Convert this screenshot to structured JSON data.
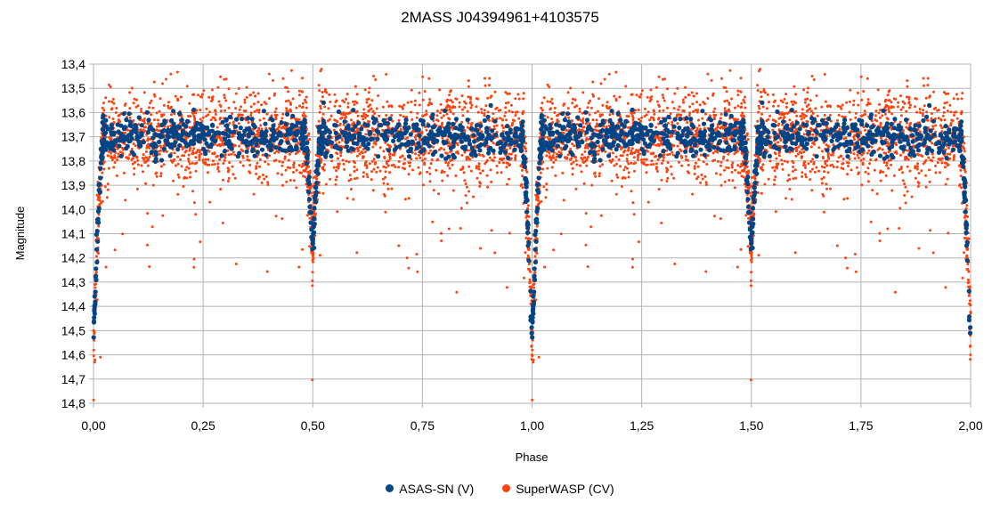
{
  "chart_data": {
    "type": "scatter",
    "title": "2MASS J04394961+4103575",
    "xlabel": "Phase",
    "ylabel": "Magnitude",
    "xlim": [
      0,
      2
    ],
    "ylim": [
      13.4,
      14.8
    ],
    "y_inverted": true,
    "grid": true,
    "legend_position": "bottom",
    "x_tick_labels": [
      "0,00",
      "0,25",
      "0,50",
      "0,75",
      "1,00",
      "1,25",
      "1,50",
      "1,75",
      "2,00"
    ],
    "y_tick_labels": [
      "13,4",
      "13,5",
      "13,6",
      "13,7",
      "13,8",
      "13,9",
      "14,0",
      "14,1",
      "14,2",
      "14,3",
      "14,4",
      "14,5",
      "14,6",
      "14,7",
      "14,8"
    ],
    "light_curve_model": {
      "out_of_eclipse_mag": 13.7,
      "primary_eclipse": {
        "phase": 0.0,
        "depth_mag": 0.85
      },
      "secondary_eclipse": {
        "phase": 0.5,
        "depth_mag": 0.45
      }
    },
    "series": [
      {
        "name": "ASAS-SN (V)",
        "color": "#004586",
        "scatter_mag": 0.04,
        "point_count": 900
      },
      {
        "name": "SuperWASP (CV)",
        "color": "#ff420e",
        "scatter_mag": 0.09,
        "point_count": 2600
      }
    ]
  }
}
